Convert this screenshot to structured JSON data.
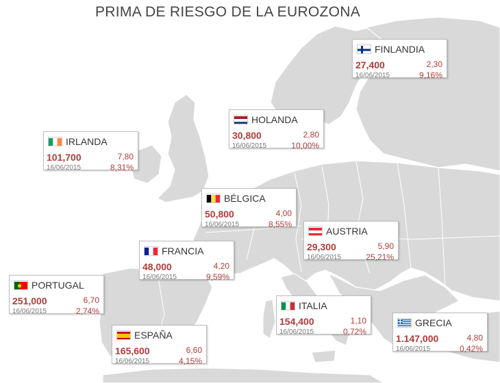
{
  "title": "PRIMA DE RIESGO DE LA EUROZONA",
  "colors": {
    "land": "#d8d8d8",
    "sea": "#ffffff",
    "accent": "#b23a3a"
  },
  "cards": [
    {
      "key": "finlandia",
      "name": "FINLANDIA",
      "flag": "finland-flag",
      "value": "27,400",
      "change": "2,30",
      "date": "16/06/2015",
      "percent": "9,16%"
    },
    {
      "key": "holanda",
      "name": "HOLANDA",
      "flag": "netherlands-flag",
      "value": "30,800",
      "change": "2,80",
      "date": "16/06/2015",
      "percent": "10,00%"
    },
    {
      "key": "irlanda",
      "name": "IRLANDA",
      "flag": "ireland-flag",
      "value": "101,700",
      "change": "7,80",
      "date": "16/06/2015",
      "percent": "8,31%"
    },
    {
      "key": "belgica",
      "name": "BÉLGICA",
      "flag": "belgium-flag",
      "value": "50,800",
      "change": "4,00",
      "date": "16/06/2015",
      "percent": "8,55%"
    },
    {
      "key": "austria",
      "name": "AUSTRIA",
      "flag": "austria-flag",
      "value": "29,300",
      "change": "5,90",
      "date": "16/06/2015",
      "percent": "25,21%"
    },
    {
      "key": "francia",
      "name": "FRANCIA",
      "flag": "france-flag",
      "value": "48,000",
      "change": "4,20",
      "date": "16/06/2015",
      "percent": "9,59%"
    },
    {
      "key": "portugal",
      "name": "PORTUGAL",
      "flag": "portugal-flag",
      "value": "251,000",
      "change": "6,70",
      "date": "16/06/2015",
      "percent": "2,74%"
    },
    {
      "key": "italia",
      "name": "ITALIA",
      "flag": "italy-flag",
      "value": "154,400",
      "change": "1,10",
      "date": "16/06/2015",
      "percent": "0,72%"
    },
    {
      "key": "grecia",
      "name": "GRECIA",
      "flag": "greece-flag",
      "value": "1.147,000",
      "change": "4,80",
      "date": "16/06/2015",
      "percent": "0,42%"
    },
    {
      "key": "espana",
      "name": "ESPAÑA",
      "flag": "spain-flag",
      "value": "165,600",
      "change": "6,60",
      "date": "16/06/2015",
      "percent": "4,15%"
    }
  ]
}
